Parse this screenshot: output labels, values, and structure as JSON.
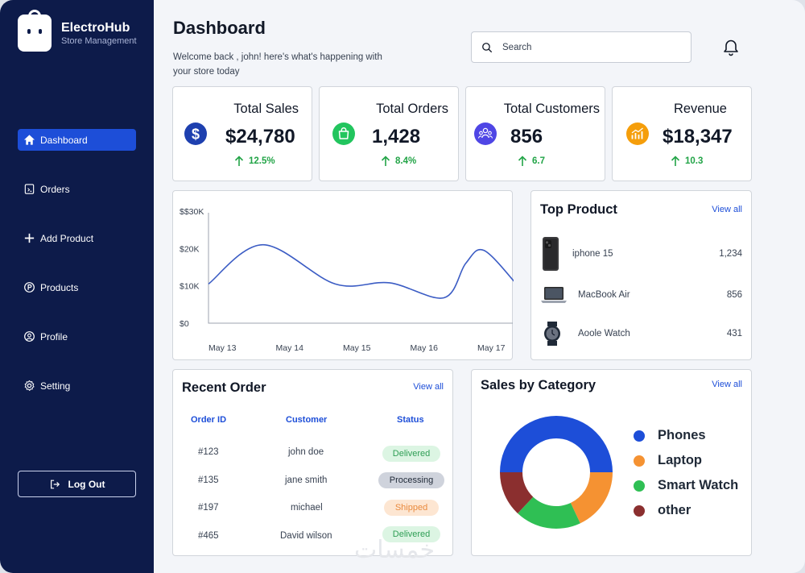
{
  "app": {
    "name": "ElectroHub",
    "subtitle": "Store Management"
  },
  "sidebar": {
    "items": [
      {
        "label": "Dashboard",
        "icon": "home-icon",
        "active": true
      },
      {
        "label": "Orders",
        "icon": "orders-icon"
      },
      {
        "label": "Add Product",
        "icon": "plus-icon"
      },
      {
        "label": "Products",
        "icon": "products-icon"
      },
      {
        "label": "Profile",
        "icon": "user-icon"
      },
      {
        "label": "Setting",
        "icon": "gear-icon"
      }
    ],
    "logout_label": "Log Out"
  },
  "header": {
    "title": "Dashboard",
    "welcome": "Welcome back , john! here's what's happening with your store today",
    "search_placeholder": "Search"
  },
  "stats": [
    {
      "title": "Total Sales",
      "value": "$24,780",
      "change": "12.5%",
      "icon": "dollar-icon",
      "color": "#1e40af"
    },
    {
      "title": "Total Orders",
      "value": "1,428",
      "change": "8.4%",
      "icon": "bag-icon",
      "color": "#22c55e"
    },
    {
      "title": "Total Customers",
      "value": "856",
      "change": "6.7",
      "icon": "customers-icon",
      "color": "#4f46e5"
    },
    {
      "title": "Revenue",
      "value": "$18,347",
      "change": "10.3",
      "icon": "revenue-icon",
      "color": "#f59e0b"
    }
  ],
  "chart_data": {
    "type": "line",
    "x": [
      "May 13",
      "May 14",
      "May 15",
      "May 16",
      "May 17"
    ],
    "y_ticks": [
      "$$30K",
      "$20K",
      "$10K",
      "$0"
    ],
    "ylim": [
      0,
      30000
    ],
    "series": [
      {
        "points": [
          [
            0,
            10500
          ],
          [
            0.75,
            21000
          ],
          [
            1.75,
            10500
          ],
          [
            2.5,
            10800
          ],
          [
            3.25,
            6800
          ],
          [
            3.55,
            16000
          ],
          [
            3.8,
            19500
          ],
          [
            4.25,
            10500
          ]
        ]
      }
    ],
    "line_color": "#3b5cc4"
  },
  "top_product": {
    "title": "Top Product",
    "view_all": "View all",
    "items": [
      {
        "name": "iphone 15",
        "value": "1,234",
        "icon": "phone-icon"
      },
      {
        "name": "MacBook Air",
        "value": "856",
        "icon": "laptop-icon"
      },
      {
        "name": "Aoole Watch",
        "value": "431",
        "icon": "watch-icon"
      }
    ]
  },
  "recent_order": {
    "title": "Recent Order",
    "view_all": "View all",
    "headers": [
      "Order ID",
      "Customer",
      "Status"
    ],
    "rows": [
      {
        "id": "#123",
        "customer": "john doe",
        "status": "Delivered",
        "kind": "delivered"
      },
      {
        "id": "#135",
        "customer": "jane smith",
        "status": "Processing",
        "kind": "processing"
      },
      {
        "id": "#197",
        "customer": "michael",
        "status": "Shipped",
        "kind": "shipped"
      },
      {
        "id": "#465",
        "customer": "David wilson",
        "status": "Delivered",
        "kind": "delivered"
      }
    ]
  },
  "sales_by_category": {
    "title": "Sales by Category",
    "view_all": "View all",
    "chart_data": {
      "type": "pie",
      "donut": true,
      "labels": [
        "Phones",
        "Laptop",
        "Smart Watch",
        "other"
      ],
      "values": [
        50,
        18,
        19,
        13
      ],
      "colors": [
        "#1d4ed8",
        "#f59232",
        "#2fbf54",
        "#8b2f2f"
      ]
    }
  },
  "watermark": "خمسات"
}
